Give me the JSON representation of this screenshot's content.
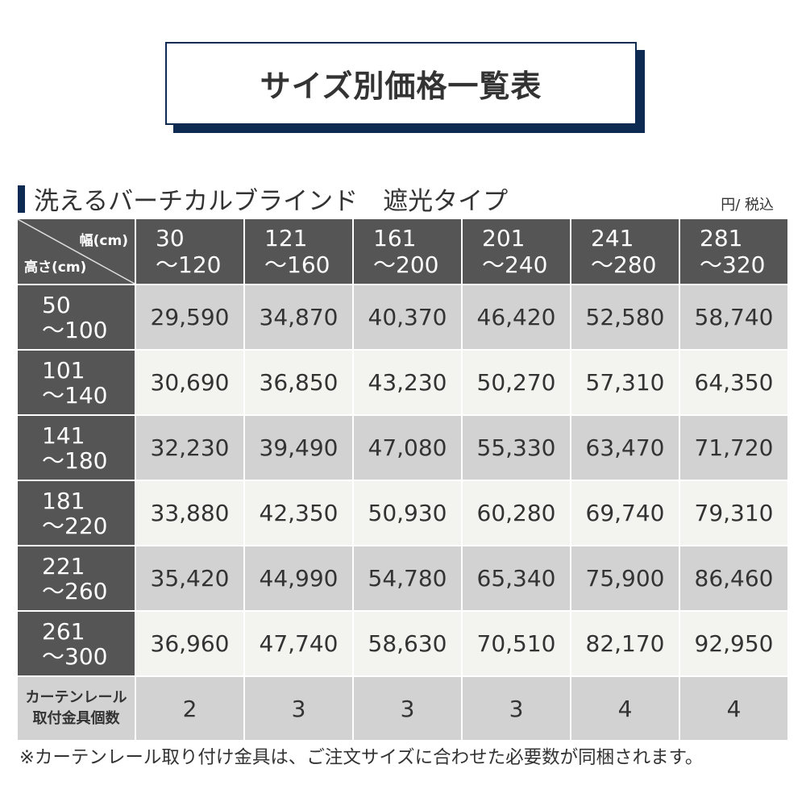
{
  "title": "サイズ別価格一覧表",
  "section_title": "洗えるバーチカルブラインド　遮光タイプ",
  "unit_note": "円/ 税込",
  "table": {
    "corner_width_label": "幅(cm)",
    "corner_height_label": "高さ(cm)",
    "width_headers": [
      {
        "from": "30",
        "to": "〜120"
      },
      {
        "from": "121",
        "to": "〜160"
      },
      {
        "from": "161",
        "to": "〜200"
      },
      {
        "from": "201",
        "to": "〜240"
      },
      {
        "from": "241",
        "to": "〜280"
      },
      {
        "from": "281",
        "to": "〜320"
      }
    ],
    "rows": [
      {
        "from": "50",
        "to": "〜100",
        "prices": [
          "29,590",
          "34,870",
          "40,370",
          "46,420",
          "52,580",
          "58,740"
        ]
      },
      {
        "from": "101",
        "to": "〜140",
        "prices": [
          "30,690",
          "36,850",
          "43,230",
          "50,270",
          "57,310",
          "64,350"
        ]
      },
      {
        "from": "141",
        "to": "〜180",
        "prices": [
          "32,230",
          "39,490",
          "47,080",
          "55,330",
          "63,470",
          "71,720"
        ]
      },
      {
        "from": "181",
        "to": "〜220",
        "prices": [
          "33,880",
          "42,350",
          "50,930",
          "60,280",
          "69,740",
          "79,310"
        ]
      },
      {
        "from": "221",
        "to": "〜260",
        "prices": [
          "35,420",
          "44,990",
          "54,780",
          "65,340",
          "75,900",
          "86,460"
        ]
      },
      {
        "from": "261",
        "to": "〜300",
        "prices": [
          "36,960",
          "47,740",
          "58,630",
          "70,510",
          "82,170",
          "92,950"
        ]
      }
    ],
    "bracket_label_line1": "カーテンレール",
    "bracket_label_line2": "取付金具個数",
    "bracket_counts": [
      "2",
      "3",
      "3",
      "3",
      "4",
      "4"
    ]
  },
  "footnote": "※カーテンレール取り付け金具は、ご注文サイズに合わせた必要数が同梱されます。",
  "colors": {
    "navy": "#0d2a52",
    "header_dark": "#555555",
    "row_gray": "#d2d2d2",
    "row_light": "#f3f3ef"
  }
}
